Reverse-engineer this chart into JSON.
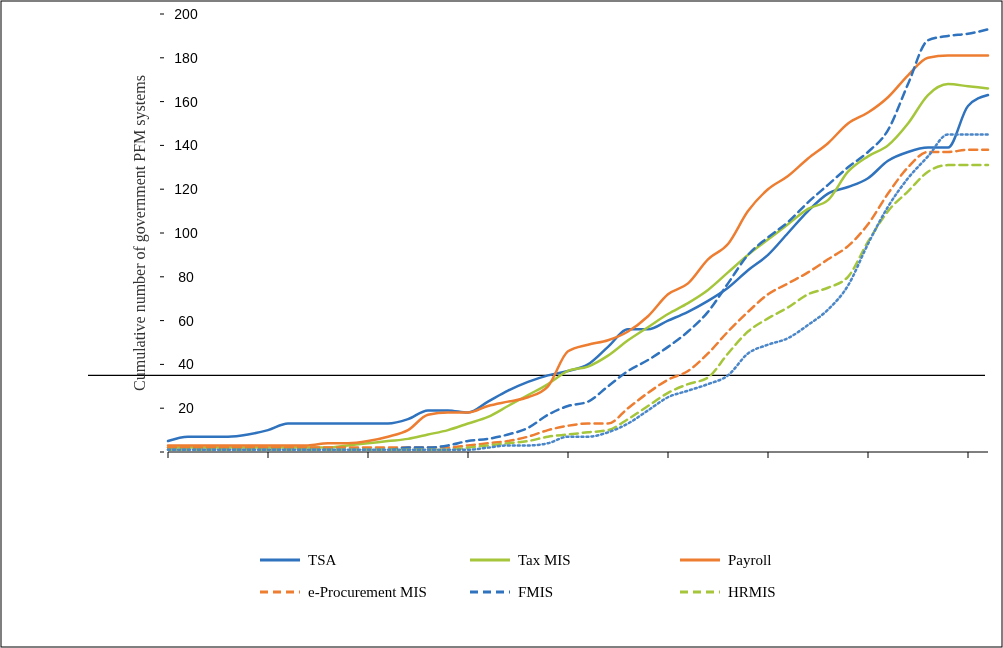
{
  "chart_data": {
    "type": "line",
    "ylabel": "Cumulative number of government PFM systems",
    "categories": [
      null,
      null,
      null,
      null,
      null,
      null,
      null,
      null,
      null,
      null,
      null,
      null,
      null,
      null,
      null,
      null,
      null,
      null,
      null,
      null,
      null,
      null,
      null,
      null,
      null,
      null,
      null,
      null,
      null,
      null,
      null,
      null,
      null,
      null,
      null,
      null,
      null,
      null,
      null,
      null,
      null,
      null
    ],
    "ylim": [
      0,
      200
    ],
    "yticks": [
      {
        "value": 0,
        "label": null
      },
      20,
      40,
      60,
      80,
      100,
      120,
      140,
      160,
      180,
      200
    ],
    "tick_labels": "y",
    "legend": "bottom",
    "ref_lines": [
      {
        "axis": "y",
        "value": 35,
        "color": "#000000"
      }
    ],
    "series": [
      {
        "name": "TSA",
        "color": "#2f72bd",
        "line_style": "solid",
        "values": [
          5,
          7,
          7,
          7,
          8,
          10,
          13,
          13,
          13,
          13,
          13,
          13,
          15,
          19,
          19,
          18,
          23,
          28,
          32,
          35,
          37,
          40,
          48,
          56,
          56,
          60,
          64,
          69,
          75,
          83,
          90,
          100,
          110,
          118,
          121,
          125,
          133,
          137,
          139,
          139,
          158,
          163
        ]
      },
      {
        "name": "Tax MIS",
        "color": "#a5c63b",
        "line_style": "solid",
        "values": [
          2,
          2,
          2,
          2,
          2,
          2,
          2,
          2,
          2,
          3,
          4,
          5,
          6,
          8,
          10,
          13,
          16,
          21,
          26,
          31,
          37,
          39,
          44,
          51,
          57,
          63,
          68,
          74,
          82,
          90,
          97,
          104,
          111,
          115,
          128,
          135,
          140,
          150,
          163,
          168,
          167,
          166
        ]
      },
      {
        "name": "Payroll",
        "color": "#ed7d31",
        "line_style": "solid",
        "values": [
          3,
          3,
          3,
          3,
          3,
          3,
          3,
          3,
          4,
          4,
          5,
          7,
          10,
          17,
          18,
          18,
          21,
          23,
          25,
          30,
          46,
          49,
          51,
          55,
          62,
          72,
          77,
          88,
          95,
          110,
          120,
          126,
          134,
          141,
          150,
          155,
          162,
          172,
          180,
          181,
          181,
          181
        ]
      },
      {
        "name": "e-Procurement MIS",
        "color": "#ed7d31",
        "line_style": "dashed",
        "values": [
          2,
          2,
          2,
          2,
          2,
          2,
          2,
          2,
          2,
          2,
          2,
          2,
          2,
          2,
          2,
          3,
          4,
          5,
          7,
          10,
          12,
          13,
          13,
          20,
          27,
          33,
          37,
          45,
          55,
          64,
          72,
          77,
          82,
          88,
          94,
          104,
          118,
          130,
          137,
          137,
          138,
          138
        ]
      },
      {
        "name": "FMIS",
        "color": "#2f72bd",
        "line_style": "dashed",
        "values": [
          1,
          1,
          1,
          1,
          1,
          1,
          1,
          1,
          1,
          1,
          1,
          1,
          2,
          2,
          3,
          5,
          6,
          8,
          11,
          17,
          21,
          23,
          30,
          37,
          42,
          48,
          55,
          64,
          77,
          90,
          98,
          105,
          114,
          122,
          130,
          137,
          147,
          168,
          188,
          190,
          191,
          193
        ]
      },
      {
        "name": "HRMIS",
        "color": "#a5c63b",
        "line_style": "dashed",
        "values": [
          1,
          1,
          1,
          1,
          1,
          1,
          1,
          1,
          1,
          1,
          1,
          1,
          1,
          1,
          1,
          2,
          3,
          4,
          5,
          7,
          8,
          9,
          10,
          15,
          21,
          27,
          31,
          34,
          45,
          55,
          61,
          66,
          72,
          75,
          80,
          96,
          110,
          119,
          128,
          131,
          131,
          131
        ]
      },
      {
        "color": "#4a86c8",
        "line_style": "dotted",
        "values": [
          1,
          1,
          1,
          1,
          1,
          1,
          1,
          1,
          1,
          1,
          1,
          1,
          1,
          1,
          1,
          1,
          2,
          3,
          3,
          4,
          7,
          7,
          9,
          13,
          19,
          25,
          28,
          31,
          35,
          45,
          49,
          52,
          58,
          65,
          76,
          95,
          112,
          125,
          135,
          145,
          145,
          145
        ]
      }
    ]
  }
}
